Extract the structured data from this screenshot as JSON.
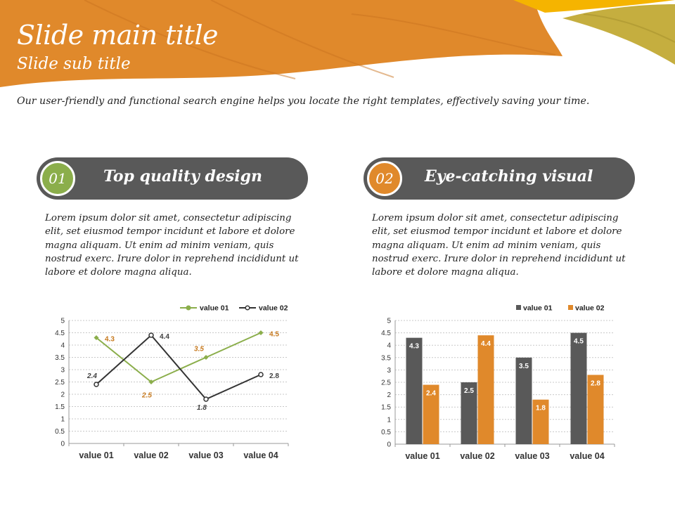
{
  "header": {
    "title": "Slide main title",
    "subtitle": "Slide sub title",
    "colors": {
      "orange": "#e0892b",
      "yellow": "#f5b400",
      "olive": "#c5ae3f"
    }
  },
  "intro": "Our user-friendly and functional  search engine helps you locate the right templates, effectively saving your time.",
  "sections": [
    {
      "number": "01",
      "title": "Top quality design",
      "circle_color": "#8bae4b",
      "body": "Lorem ipsum dolor sit amet, consectetur adipiscing elit, set eiusmod tempor incidunt et labore et dolore magna aliquam. Ut enim ad minim veniam, quis nostrud exerc. Irure dolor in reprehend incididunt ut labore et dolore magna aliqua."
    },
    {
      "number": "02",
      "title": "Eye-catching visual",
      "circle_color": "#e0892b",
      "body": "Lorem ipsum dolor sit amet, consectetur adipiscing elit, set eiusmod tempor incidunt et labore et dolore magna aliquam. Ut enim ad minim veniam, quis nostrud exerc. Irure dolor in reprehend incididunt ut labore et dolore magna aliqua."
    }
  ],
  "chart_data": [
    {
      "type": "line",
      "categories": [
        "value 01",
        "value 02",
        "value 03",
        "value 04"
      ],
      "series": [
        {
          "name": "value 01",
          "values": [
            4.3,
            2.5,
            3.5,
            4.5
          ],
          "color": "#8bae4b",
          "label_color": "#c77a1f"
        },
        {
          "name": "value 02",
          "values": [
            2.4,
            4.4,
            1.8,
            2.8
          ],
          "color": "#333333",
          "label_color": "#404040"
        }
      ],
      "yticks": [
        "0",
        "0.5",
        "1",
        "1.5",
        "2",
        "2.5",
        "3",
        "3.5",
        "4",
        "4.5",
        "5"
      ],
      "ylim": [
        0,
        5
      ],
      "grid": true,
      "legend": "top-right"
    },
    {
      "type": "bar",
      "categories": [
        "value 01",
        "value 02",
        "value 03",
        "value 04"
      ],
      "series": [
        {
          "name": "value 01",
          "values": [
            4.3,
            2.5,
            3.5,
            4.5
          ],
          "color": "#595959"
        },
        {
          "name": "value 02",
          "values": [
            2.4,
            4.4,
            1.8,
            2.8
          ],
          "color": "#e0892b"
        }
      ],
      "yticks": [
        "0",
        "0.5",
        "1",
        "1.5",
        "2",
        "2.5",
        "3",
        "3.5",
        "4",
        "4.5",
        "5"
      ],
      "ylim": [
        0,
        5
      ],
      "grid": true,
      "legend": "top-right"
    }
  ]
}
